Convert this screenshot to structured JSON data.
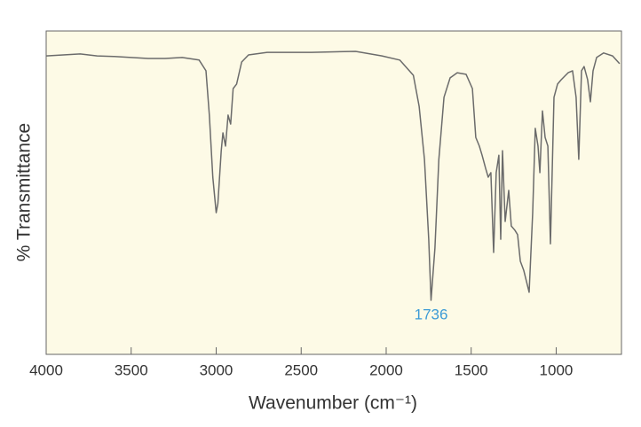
{
  "chart_data": {
    "type": "line",
    "xlabel": "Wavenumber (cm⁻¹)",
    "ylabel": "% Transmittance",
    "xlim": [
      4000,
      616
    ],
    "ylim": [
      0,
      100
    ],
    "xticks": [
      4000,
      3500,
      3000,
      2500,
      2000,
      1500,
      1000
    ],
    "background": "#fdfae6",
    "series": [
      {
        "name": "spectrum",
        "color": "#6b6b6b",
        "x": [
          4000,
          3900,
          3800,
          3700,
          3600,
          3500,
          3400,
          3300,
          3200,
          3100,
          3060,
          3040,
          3020,
          3000,
          2990,
          2970,
          2960,
          2945,
          2930,
          2915,
          2900,
          2880,
          2850,
          2810,
          2700,
          2440,
          2180,
          2025,
          1920,
          1840,
          1806,
          1775,
          1750,
          1736,
          1713,
          1690,
          1660,
          1624,
          1582,
          1530,
          1493,
          1473,
          1452,
          1436,
          1415,
          1400,
          1384,
          1368,
          1353,
          1337,
          1326,
          1316,
          1300,
          1279,
          1264,
          1243,
          1227,
          1211,
          1191,
          1159,
          1138,
          1123,
          1107,
          1096,
          1081,
          1065,
          1049,
          1034,
          1013,
          992,
          971,
          930,
          904,
          883,
          867,
          851,
          836,
          815,
          799,
          783,
          762,
          721,
          668,
          627
        ],
        "values": [
          92.3,
          92.6,
          92.9,
          92.3,
          92.1,
          91.8,
          91.5,
          91.5,
          91.8,
          91.0,
          87.7,
          74.0,
          54.8,
          43.8,
          46.6,
          63.0,
          68.5,
          64.4,
          74.0,
          71.2,
          82.2,
          83.6,
          90.4,
          92.6,
          93.4,
          93.4,
          93.7,
          92.3,
          91.0,
          86.3,
          76.7,
          60.3,
          35.6,
          16.7,
          32.9,
          60.3,
          79.5,
          85.5,
          87.1,
          86.6,
          82.2,
          67.1,
          64.4,
          61.6,
          57.5,
          54.8,
          56.2,
          31.5,
          56.2,
          61.6,
          35.6,
          63.0,
          41.1,
          50.7,
          39.7,
          38.4,
          37.0,
          28.8,
          26.0,
          19.2,
          43.8,
          69.9,
          64.4,
          56.2,
          75.3,
          67.1,
          64.4,
          34.2,
          79.5,
          83.6,
          84.9,
          87.1,
          87.7,
          79.5,
          60.3,
          87.7,
          89.0,
          84.9,
          78.1,
          87.7,
          91.8,
          93.2,
          92.3,
          89.9
        ]
      }
    ],
    "annotations": [
      {
        "text": "1736",
        "x": 1736,
        "color": "#3d9bd6"
      }
    ]
  }
}
